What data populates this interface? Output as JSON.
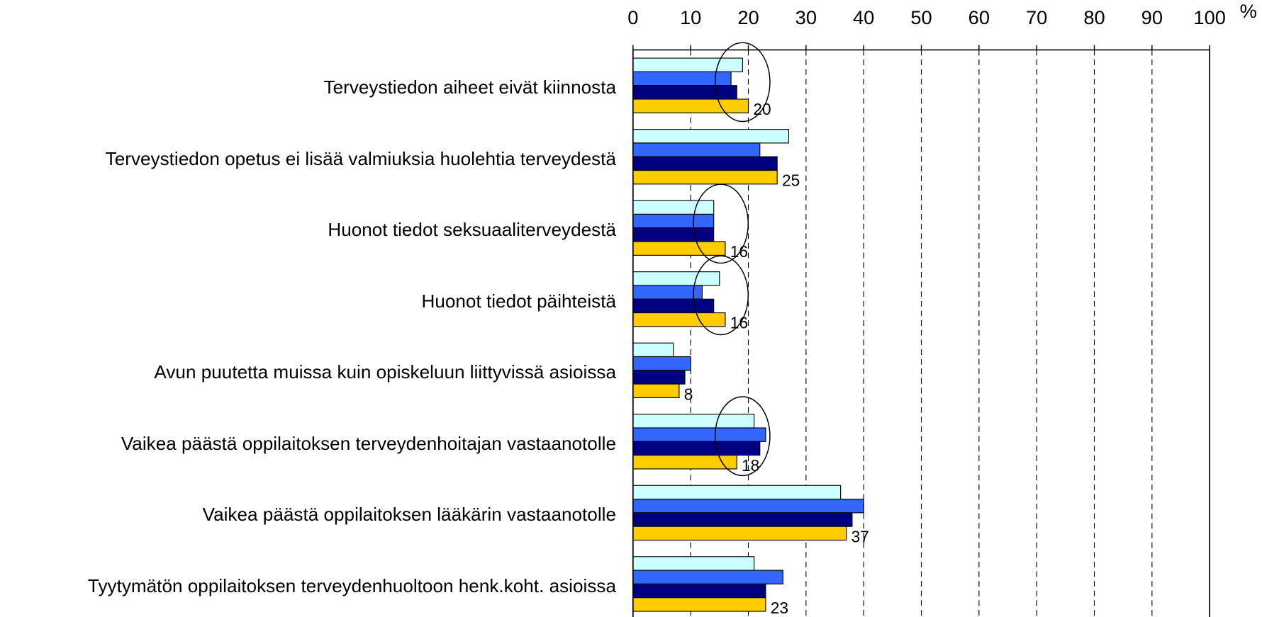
{
  "chart_data": {
    "type": "barh",
    "categories": [
      "Terveystiedon aiheet eivät kiinnosta",
      "Terveystiedon opetus ei lisää valmiuksia huolehtia terveydestä",
      "Huonot tiedot seksuaaliterveydestä",
      "Huonot tiedot päihteistä",
      "Avun puutetta muissa kuin opiskeluun liittyvissä asioissa",
      "Vaikea päästä oppilaitoksen terveydenhoitajan vastaanotolle",
      "Vaikea päästä oppilaitoksen lääkärin vastaanotolle",
      "Tyytymätön oppilaitoksen terveydenhuoltoon henk.koht. asioissa"
    ],
    "series": [
      {
        "color": "#ccffff",
        "values": [
          19,
          27,
          14,
          15,
          7,
          21,
          36,
          21
        ]
      },
      {
        "color": "#3366ff",
        "values": [
          17,
          22,
          14,
          12,
          10,
          23,
          40,
          26
        ]
      },
      {
        "color": "#000080",
        "values": [
          18,
          25,
          14,
          14,
          9,
          22,
          38,
          23
        ]
      },
      {
        "color": "#ffcc00",
        "values": [
          20,
          25,
          16,
          16,
          8,
          18,
          37,
          23
        ],
        "data_labels": true
      }
    ],
    "x_unit": "%",
    "xlim": [
      0,
      100
    ],
    "xticks": [
      0,
      10,
      20,
      30,
      40,
      50,
      60,
      70,
      80,
      90,
      100
    ],
    "grid": true
  }
}
